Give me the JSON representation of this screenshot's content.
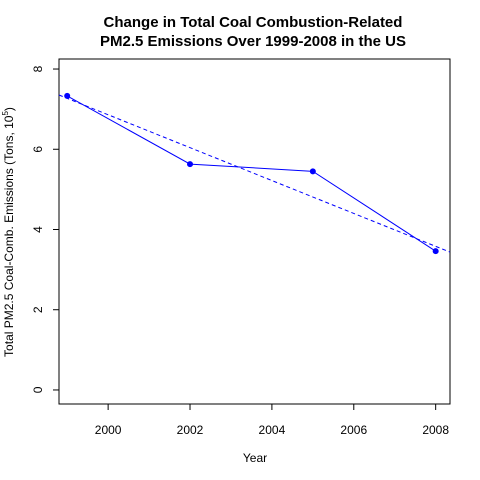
{
  "chart_data": {
    "type": "line",
    "title_line1": "Change in Total Coal Combustion-Related",
    "title_line2": "PM2.5 Emissions Over 1999-2008 in the US",
    "xlabel": "Year",
    "ylabel_main": "Total PM2.5 Coal-Comb. Emissions (Tons, 10",
    "ylabel_exp": "5",
    "ylabel_close": ")",
    "x": [
      1999,
      2002,
      2005,
      2008
    ],
    "y": [
      7.33,
      5.63,
      5.45,
      3.46
    ],
    "xlim": [
      1998.8,
      2008.35
    ],
    "ylim": [
      -0.35,
      8.25
    ],
    "x_ticks": [
      2000,
      2002,
      2004,
      2006,
      2008
    ],
    "x_tick_labels": [
      "2000",
      "2002",
      "2004",
      "2006",
      "2008"
    ],
    "y_ticks": [
      0,
      2,
      4,
      6,
      8
    ],
    "y_tick_labels": [
      "0",
      "2",
      "4",
      "6",
      "8"
    ],
    "trend_line": {
      "style": "dashed",
      "intercept_at_1999": 7.27,
      "slope_per_year": -0.41
    },
    "grid": false,
    "colors": {
      "series": "#0000ff",
      "axes": "#000000"
    }
  }
}
